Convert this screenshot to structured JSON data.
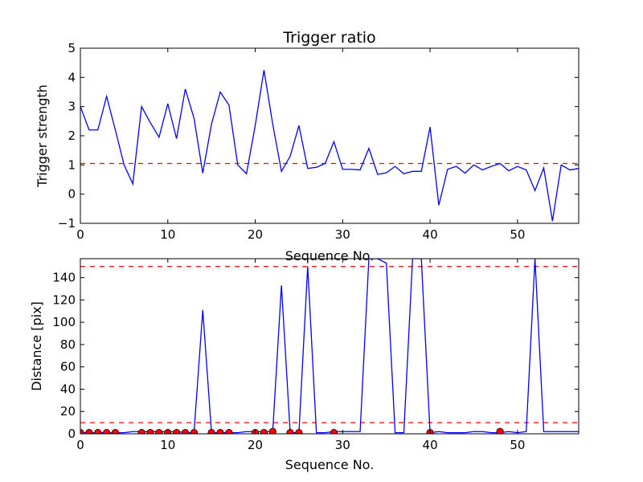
{
  "chart_data": [
    {
      "type": "line",
      "title": "Trigger ratio",
      "xlabel": "Sequence No.",
      "ylabel": "Trigger strength",
      "xlim": [
        0,
        57
      ],
      "ylim": [
        -1,
        5
      ],
      "xticks": [
        0,
        10,
        20,
        30,
        40,
        50
      ],
      "yticks": [
        -1,
        0,
        1,
        2,
        3,
        4,
        5
      ],
      "xtick_labels": [
        "0",
        "10",
        "20",
        "30",
        "40",
        "50"
      ],
      "ytick_labels": [
        "−1",
        "0",
        "1",
        "2",
        "3",
        "4",
        "5"
      ],
      "threshold_lines": [
        {
          "y": 1.05,
          "color": "#ff0000",
          "style": "dashed"
        }
      ],
      "series": [
        {
          "color": "#0000ff",
          "x": [
            0,
            1,
            2,
            3,
            4,
            5,
            6,
            7,
            8,
            9,
            10,
            11,
            12,
            13,
            14,
            15,
            16,
            17,
            18,
            19,
            20,
            21,
            22,
            23,
            24,
            25,
            26,
            27,
            28,
            29,
            30,
            31,
            32,
            33,
            34,
            35,
            36,
            37,
            38,
            39,
            40,
            41,
            42,
            43,
            44,
            45,
            46,
            47,
            48,
            49,
            50,
            51,
            52,
            53,
            54,
            55,
            56,
            57
          ],
          "y": [
            3.0,
            2.2,
            2.2,
            3.35,
            2.2,
            1.0,
            0.35,
            3.0,
            2.45,
            1.95,
            3.1,
            1.9,
            3.6,
            2.6,
            0.72,
            2.4,
            3.5,
            3.05,
            1.0,
            0.7,
            2.35,
            4.25,
            2.4,
            0.78,
            1.3,
            2.35,
            0.88,
            0.92,
            1.05,
            1.8,
            0.85,
            0.85,
            0.83,
            1.57,
            0.68,
            0.73,
            0.95,
            0.7,
            0.78,
            0.78,
            2.3,
            -0.38,
            0.85,
            0.95,
            0.72,
            1.0,
            0.83,
            0.95,
            1.05,
            0.8,
            0.95,
            0.83,
            0.12,
            0.9,
            -0.92,
            1.0,
            0.83,
            0.88
          ]
        }
      ]
    },
    {
      "type": "line",
      "title": "",
      "xlabel": "Sequence No.",
      "ylabel": "Distance [pix]",
      "xlim": [
        0,
        57
      ],
      "ylim": [
        0,
        157
      ],
      "xticks": [
        0,
        10,
        20,
        30,
        40,
        50
      ],
      "yticks": [
        0,
        20,
        40,
        60,
        80,
        100,
        120,
        140
      ],
      "xtick_labels": [
        "0",
        "10",
        "20",
        "30",
        "40",
        "50"
      ],
      "ytick_labels": [
        "0",
        "20",
        "40",
        "60",
        "80",
        "100",
        "120",
        "140"
      ],
      "threshold_lines": [
        {
          "y": 150,
          "color": "#ff0000",
          "style": "dashed"
        },
        {
          "y": 10,
          "color": "#ff0000",
          "style": "dashed"
        }
      ],
      "series": [
        {
          "color": "#0000ff",
          "x": [
            0,
            1,
            2,
            3,
            4,
            5,
            6,
            7,
            8,
            9,
            10,
            11,
            12,
            13,
            14,
            15,
            16,
            17,
            18,
            19,
            20,
            21,
            22,
            23,
            24,
            25,
            26,
            27,
            28,
            29,
            30,
            31,
            32,
            33,
            34,
            35,
            36,
            37,
            38,
            39,
            40,
            41,
            42,
            43,
            44,
            45,
            46,
            47,
            48,
            49,
            50,
            51,
            52,
            53,
            54,
            55,
            56,
            57
          ],
          "y": [
            1,
            1,
            1,
            1,
            1,
            1,
            2,
            2,
            2,
            2,
            2,
            2,
            1,
            1,
            111,
            1,
            1,
            1,
            1,
            2,
            2,
            2,
            2,
            133,
            1,
            1,
            150,
            1,
            1,
            2,
            2,
            2,
            2,
            157,
            157,
            153,
            1,
            1,
            157,
            157,
            1,
            2,
            1,
            1,
            1,
            2,
            2,
            1,
            1,
            2,
            1,
            2,
            157,
            2,
            2,
            2,
            2,
            2
          ]
        }
      ],
      "markers": {
        "color": "#ff0000",
        "x": [
          0,
          1,
          2,
          3,
          4,
          7,
          8,
          9,
          10,
          11,
          12,
          13,
          15,
          16,
          17,
          20,
          21,
          22,
          24,
          25,
          29,
          40,
          48
        ],
        "y": [
          1,
          1,
          1,
          1,
          1,
          1,
          1,
          1,
          1,
          1,
          1,
          1,
          1,
          1,
          1,
          1,
          1,
          2,
          1,
          1,
          1,
          1,
          2
        ]
      }
    }
  ]
}
